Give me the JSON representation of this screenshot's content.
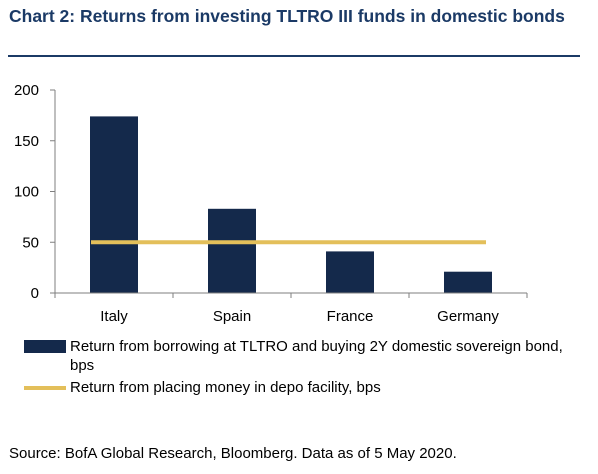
{
  "title": "Chart 2: Returns from investing TLTRO III funds in domestic bonds",
  "source": "Source: BofA Global Research, Bloomberg. Data as of 5 May 2020.",
  "colors": {
    "title": "#1b3a66",
    "bar": "#14294b",
    "line": "#e3bf5a",
    "axis": "#7f7f7f"
  },
  "chart_data": {
    "type": "bar",
    "categories": [
      "Italy",
      "Spain",
      "France",
      "Germany"
    ],
    "series": [
      {
        "name": "Return from borrowing at TLTRO and buying 2Y domestic sovereign bond, bps",
        "kind": "bar",
        "values": [
          174,
          83,
          41,
          21
        ]
      },
      {
        "name": "Return from placing money in depo facility, bps",
        "kind": "line",
        "values": [
          50,
          50,
          50,
          50
        ]
      }
    ],
    "yticks": [
      0,
      50,
      100,
      150,
      200
    ],
    "ylim": [
      0,
      200
    ],
    "grid": false,
    "legend_position": "bottom"
  }
}
